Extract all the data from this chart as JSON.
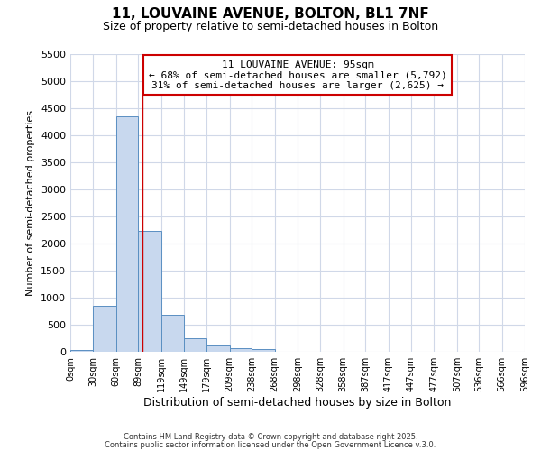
{
  "title_line1": "11, LOUVAINE AVENUE, BOLTON, BL1 7NF",
  "title_line2": "Size of property relative to semi-detached houses in Bolton",
  "xlabel": "Distribution of semi-detached houses by size in Bolton",
  "ylabel": "Number of semi-detached properties",
  "bin_edges": [
    0,
    30,
    60,
    89,
    119,
    149,
    179,
    209,
    238,
    268,
    298,
    328,
    358,
    387,
    417,
    447,
    477,
    507,
    536,
    566,
    596
  ],
  "bin_labels": [
    "0sqm",
    "30sqm",
    "60sqm",
    "89sqm",
    "119sqm",
    "149sqm",
    "179sqm",
    "209sqm",
    "238sqm",
    "268sqm",
    "298sqm",
    "328sqm",
    "358sqm",
    "387sqm",
    "417sqm",
    "447sqm",
    "477sqm",
    "507sqm",
    "536sqm",
    "566sqm",
    "596sqm"
  ],
  "counts": [
    30,
    850,
    4350,
    2230,
    680,
    250,
    120,
    60,
    50,
    5,
    5,
    2,
    1,
    1,
    1,
    1,
    1,
    1,
    1,
    1
  ],
  "bar_color": "#c8d8ee",
  "bar_edge_color": "#5a8fc2",
  "property_size": 95,
  "vline_color": "#cc0000",
  "annotation_text_line1": "11 LOUVAINE AVENUE: 95sqm",
  "annotation_text_line2": "← 68% of semi-detached houses are smaller (5,792)",
  "annotation_text_line3": "31% of semi-detached houses are larger (2,625) →",
  "annotation_box_color": "#cc0000",
  "annotation_fill_color": "#ffffff",
  "ylim": [
    0,
    5500
  ],
  "yticks": [
    0,
    500,
    1000,
    1500,
    2000,
    2500,
    3000,
    3500,
    4000,
    4500,
    5000,
    5500
  ],
  "background_color": "#ffffff",
  "grid_color": "#d0d8e8",
  "footer_line1": "Contains HM Land Registry data © Crown copyright and database right 2025.",
  "footer_line2": "Contains public sector information licensed under the Open Government Licence v.3.0."
}
